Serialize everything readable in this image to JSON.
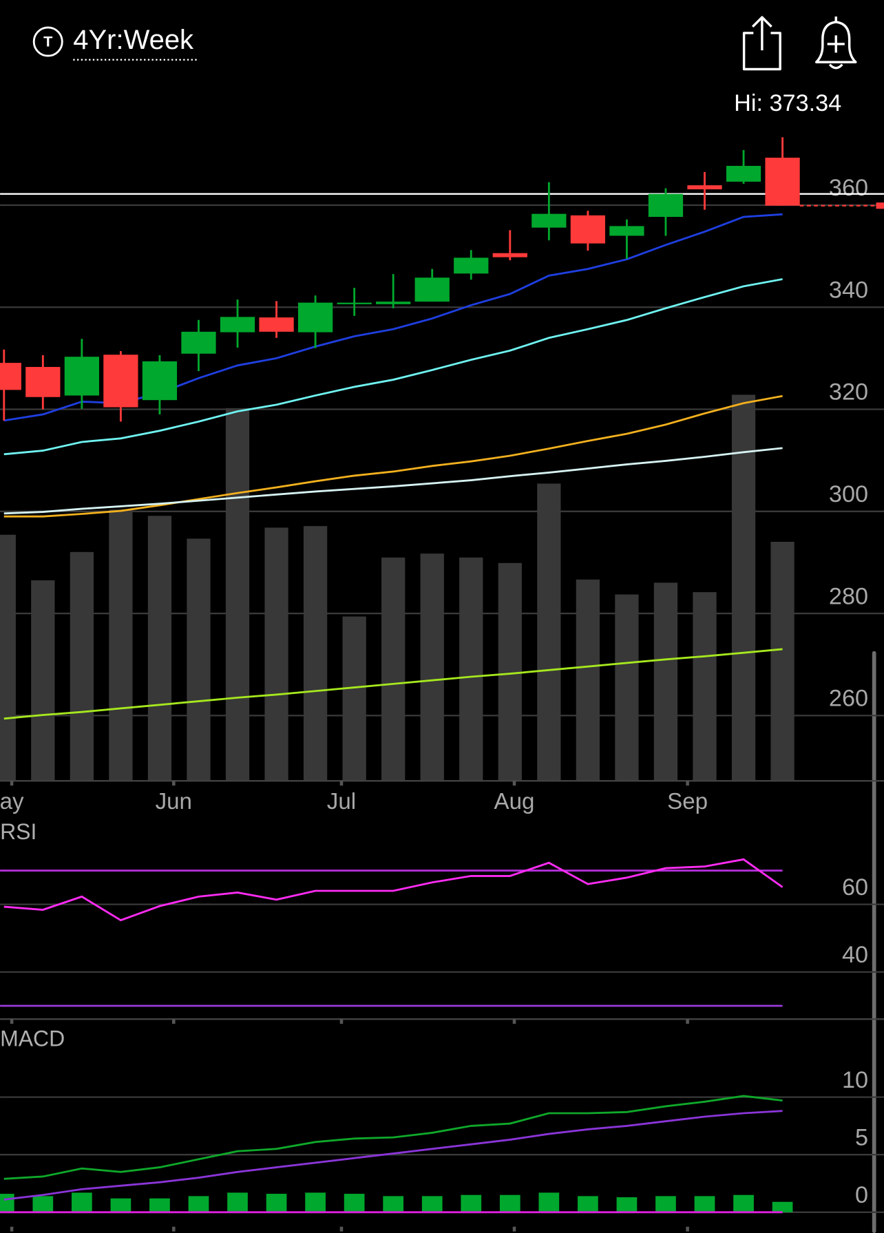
{
  "header": {
    "symbol_icon": "T",
    "range": "4Yr:Week"
  },
  "chart_data": [
    {
      "type": "candlestick",
      "high_label": "Hi: 373.34",
      "open": [
        329.1,
        328.3,
        322.7,
        330.7,
        321.8,
        330.9,
        335.1,
        338.0,
        335.1,
        340.6,
        340.6,
        341.1,
        346.6,
        350.6,
        355.6,
        358.0,
        354.0,
        357.7,
        363.9,
        364.6,
        369.3
      ],
      "high": [
        331.7,
        330.6,
        333.8,
        331.4,
        330.6,
        337.5,
        341.5,
        341.2,
        342.3,
        343.8,
        346.5,
        347.5,
        351.2,
        355.1,
        364.5,
        358.9,
        357.2,
        363.3,
        366.5,
        370.8,
        373.3
      ],
      "low": [
        317.8,
        320.0,
        320.1,
        317.6,
        319.0,
        327.5,
        332.1,
        334.0,
        332.0,
        338.3,
        339.8,
        341.1,
        345.4,
        349.2,
        353.1,
        351.1,
        349.5,
        354.0,
        359.1,
        364.2,
        359.9
      ],
      "close": [
        323.8,
        322.4,
        330.3,
        320.4,
        329.4,
        335.2,
        338.1,
        335.2,
        340.9,
        340.9,
        341.1,
        345.8,
        349.7,
        349.8,
        358.3,
        352.5,
        355.9,
        362.2,
        363.1,
        367.7,
        359.9
      ],
      "up_color": "#00a82d",
      "down_color": "#ff3a3a",
      "ylim": [
        247.2,
        385.1
      ],
      "yticks": [
        260,
        280,
        300,
        320,
        340,
        360
      ],
      "grid": true,
      "reference_line": 362.2,
      "reference_color": "#ffffff",
      "moving_averages": [
        {
          "color": "#1f3fe0",
          "values": [
            317.8,
            319.0,
            321.5,
            321.2,
            323.2,
            326.1,
            328.6,
            330.0,
            332.3,
            334.3,
            335.7,
            337.8,
            340.4,
            342.6,
            346.2,
            347.5,
            349.4,
            352.2,
            354.8,
            357.7,
            358.2
          ]
        },
        {
          "color": "#6ff2f0",
          "values": [
            311.2,
            311.9,
            313.6,
            314.3,
            315.8,
            317.6,
            319.6,
            320.9,
            322.7,
            324.4,
            325.8,
            327.7,
            329.7,
            331.5,
            334.0,
            335.7,
            337.5,
            339.8,
            342.0,
            344.1,
            345.5
          ]
        },
        {
          "color": "#f2b01e",
          "values": [
            299.0,
            299.0,
            299.5,
            300.1,
            301.2,
            302.4,
            303.6,
            304.7,
            305.9,
            307.0,
            307.8,
            308.9,
            309.8,
            310.9,
            312.3,
            313.8,
            315.2,
            317.0,
            319.2,
            321.2,
            322.6
          ]
        },
        {
          "color": "#d6f2f2",
          "values": [
            299.6,
            299.9,
            300.5,
            301.0,
            301.5,
            302.1,
            302.7,
            303.3,
            303.9,
            304.4,
            304.9,
            305.5,
            306.1,
            306.9,
            307.6,
            308.4,
            309.2,
            309.9,
            310.7,
            311.6,
            312.4
          ]
        },
        {
          "color": "#a6e81e",
          "values": [
            259.4,
            260.1,
            260.7,
            261.4,
            262.1,
            262.8,
            263.5,
            264.1,
            264.8,
            265.5,
            266.2,
            266.9,
            267.6,
            268.2,
            268.9,
            269.6,
            270.3,
            271.0,
            271.6,
            272.3,
            273.0
          ]
        }
      ],
      "volume": {
        "color": "#383838",
        "ylim": [
          0,
          895
        ],
        "values": [
          313,
          255,
          291,
          345,
          337,
          308,
          474,
          322,
          324,
          209,
          284,
          289,
          284,
          277,
          378,
          256,
          237,
          252,
          240,
          491,
          304
        ]
      },
      "xticks": [
        {
          "value": 0.2,
          "label": "ay"
        },
        {
          "value": 4.36,
          "label": "Jun"
        },
        {
          "value": 8.67,
          "label": "Jul"
        },
        {
          "value": 13.11,
          "label": "Aug"
        },
        {
          "value": 17.56,
          "label": "Sep"
        }
      ]
    },
    {
      "type": "rsi",
      "title": "RSI",
      "color": "#ff2cf4",
      "values": [
        59.3,
        58.4,
        62.3,
        55.3,
        59.5,
        62.3,
        63.5,
        61.4,
        64.0,
        64.0,
        64.0,
        66.5,
        68.4,
        68.4,
        72.3,
        66.0,
        67.9,
        70.7,
        71.2,
        73.3,
        65.1
      ],
      "ylim": [
        26.3,
        85.6
      ],
      "yticks": [
        40,
        60
      ],
      "grid": true,
      "bands": [
        {
          "value": 70,
          "color": "#b22fd8"
        },
        {
          "value": 30,
          "color": "#9b3ad8"
        }
      ]
    },
    {
      "type": "macd",
      "title": "MACD",
      "series": [
        {
          "color": "#0fa82a",
          "values": [
            2.9,
            3.1,
            3.8,
            3.5,
            3.9,
            4.6,
            5.3,
            5.5,
            6.1,
            6.4,
            6.5,
            6.9,
            7.5,
            7.7,
            8.6,
            8.6,
            8.7,
            9.2,
            9.6,
            10.1,
            9.7
          ]
        },
        {
          "color": "#8a35d8",
          "values": [
            1.1,
            1.5,
            2.0,
            2.3,
            2.6,
            3.0,
            3.5,
            3.9,
            4.3,
            4.7,
            5.1,
            5.5,
            5.9,
            6.3,
            6.8,
            7.2,
            7.5,
            7.9,
            8.3,
            8.6,
            8.8
          ]
        }
      ],
      "histogram": {
        "color": "#00a82d",
        "baseline_color": "#e21fe0",
        "values": [
          1.6,
          1.4,
          1.7,
          1.2,
          1.2,
          1.4,
          1.7,
          1.6,
          1.7,
          1.6,
          1.4,
          1.4,
          1.5,
          1.5,
          1.7,
          1.4,
          1.3,
          1.4,
          1.4,
          1.5,
          0.9
        ]
      },
      "ylim": [
        -1.6,
        16.5
      ],
      "yticks": [
        0,
        5,
        10
      ],
      "grid": true
    }
  ]
}
